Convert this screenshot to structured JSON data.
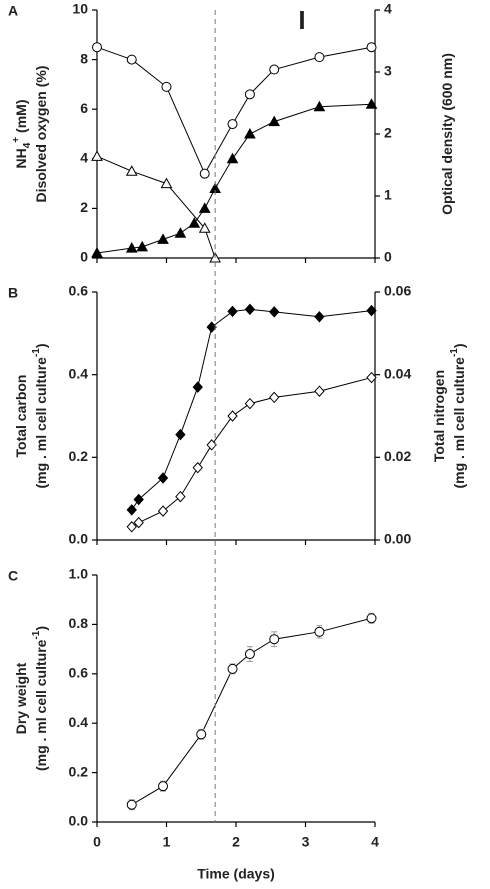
{
  "reference_x": 1.7,
  "chart_data": [
    {
      "type": "line",
      "panel": "A",
      "annotation": "I",
      "xlim": [
        0,
        4
      ],
      "xticks": [
        0,
        1,
        2,
        3,
        4
      ],
      "show_xtick_labels": false,
      "ylim": [
        0,
        10
      ],
      "yticks": [
        0,
        2,
        4,
        6,
        8,
        10
      ],
      "y2lim": [
        0,
        4
      ],
      "y2ticks": [
        0,
        1,
        2,
        3,
        4
      ],
      "ylabel": [
        [
          {
            "text": "NH"
          },
          {
            "text": "4",
            "shift": "sub"
          },
          {
            "text": "+",
            "shift": "super"
          },
          {
            "text": " (mM)"
          }
        ],
        [
          {
            "text": "Disolved oxygen (%)"
          }
        ]
      ],
      "y2label": [
        [
          {
            "text": "Optical density (600 nm)"
          }
        ]
      ],
      "series": [
        {
          "marker": "circle",
          "color": "#000000",
          "fill": "#ffffff",
          "x": [
            0,
            0.5,
            1,
            1.55,
            1.95,
            2.2,
            2.55,
            3.2,
            3.95
          ],
          "values": [
            8.5,
            8.0,
            6.9,
            3.4,
            5.4,
            6.6,
            7.6,
            8.1,
            8.5
          ]
        },
        {
          "marker": "triangle",
          "color": "#000000",
          "fill": "#ffffff",
          "x": [
            0,
            0.5,
            1,
            1.55,
            1.7
          ],
          "values": [
            4.1,
            3.5,
            3.0,
            1.2,
            0.0
          ]
        },
        {
          "marker": "triangle",
          "color": "#000000",
          "fill": "#000000",
          "axis": "y2",
          "x": [
            0,
            0.5,
            0.65,
            0.95,
            1.2,
            1.4,
            1.55,
            1.7,
            1.95,
            2.2,
            2.55,
            3.2,
            3.95
          ],
          "values": [
            0.08,
            0.16,
            0.18,
            0.3,
            0.4,
            0.56,
            0.8,
            1.12,
            1.6,
            2.0,
            2.2,
            2.44,
            2.48
          ]
        }
      ]
    },
    {
      "type": "line",
      "panel": "B",
      "xlim": [
        0,
        4
      ],
      "xticks": [
        0,
        1,
        2,
        3,
        4
      ],
      "show_xtick_labels": false,
      "ylim": [
        0,
        0.6
      ],
      "yticks": [
        {
          "value": 0,
          "label": "0.0"
        },
        0.2,
        0.4,
        0.6
      ],
      "y2lim": [
        0,
        0.06
      ],
      "y2ticks": [
        {
          "value": 0,
          "label": "0.00"
        },
        0.02,
        0.04,
        0.06
      ],
      "ylabel": [
        [
          {
            "text": "Total carbon"
          }
        ],
        [
          {
            "text": "(mg . ml cell culture"
          },
          {
            "text": "-1",
            "shift": "super"
          },
          {
            "text": ")"
          }
        ]
      ],
      "y2label": [
        [
          {
            "text": "Total nitrogen"
          }
        ],
        [
          {
            "text": "(mg . ml cell culture"
          },
          {
            "text": "-1",
            "shift": "super"
          },
          {
            "text": ")"
          }
        ]
      ],
      "series": [
        {
          "marker": "diamond",
          "color": "#000000",
          "fill": "#000000",
          "x": [
            0.5,
            0.6,
            0.95,
            1.2,
            1.45,
            1.65,
            1.95,
            2.2,
            2.55,
            3.2,
            3.95
          ],
          "values": [
            0.073,
            0.098,
            0.15,
            0.255,
            0.37,
            0.515,
            0.553,
            0.558,
            0.552,
            0.54,
            0.555
          ]
        },
        {
          "marker": "diamond",
          "color": "#000000",
          "fill": "#ffffff",
          "axis": "y2",
          "x": [
            0.5,
            0.6,
            0.95,
            1.2,
            1.45,
            1.65,
            1.95,
            2.2,
            2.55,
            3.2,
            3.95
          ],
          "values": [
            0.0032,
            0.0042,
            0.007,
            0.0105,
            0.0175,
            0.023,
            0.03,
            0.033,
            0.0345,
            0.036,
            0.0393
          ]
        }
      ]
    },
    {
      "type": "line",
      "panel": "C",
      "xlabel": "Time (days)",
      "xlim": [
        0,
        4
      ],
      "xticks": [
        0,
        1,
        2,
        3,
        4
      ],
      "show_xtick_labels": true,
      "ylim": [
        0,
        1.0
      ],
      "yticks": [
        {
          "value": 0,
          "label": "0.0"
        },
        0.2,
        0.4,
        0.6,
        0.8,
        {
          "value": 1.0,
          "label": "1.0"
        }
      ],
      "ylabel": [
        [
          {
            "text": "Dry weight"
          }
        ],
        [
          {
            "text": "(mg . ml cell culture"
          },
          {
            "text": "-1",
            "shift": "super"
          },
          {
            "text": ")"
          }
        ]
      ],
      "series": [
        {
          "marker": "circle",
          "color": "#000000",
          "fill": "#ffffff",
          "error_color": "#999999",
          "x": [
            0.5,
            0.95,
            1.5,
            1.95,
            2.2,
            2.55,
            3.2,
            3.95
          ],
          "values": [
            0.07,
            0.145,
            0.355,
            0.62,
            0.68,
            0.74,
            0.77,
            0.825
          ],
          "errors": [
            0.02,
            0.02,
            0.02,
            0.02,
            0.03,
            0.03,
            0.025,
            0.02
          ]
        }
      ]
    }
  ]
}
